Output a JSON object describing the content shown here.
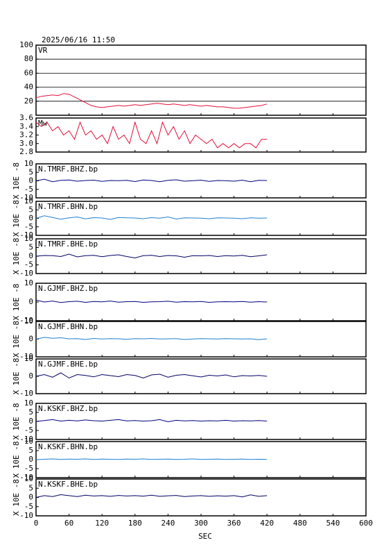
{
  "chart_data": [
    {
      "type": "line",
      "title": "2025/06/16 11:50",
      "label": "VR",
      "xlim": [
        0,
        600
      ],
      "xticks": [
        0,
        60,
        120,
        180,
        240,
        300,
        360,
        420,
        480,
        540,
        600
      ],
      "ylim": [
        0,
        100
      ],
      "yticks": [
        20,
        40,
        60,
        80,
        100
      ],
      "grid": true,
      "x": [
        0,
        10,
        20,
        30,
        40,
        50,
        60,
        70,
        80,
        90,
        100,
        110,
        120,
        130,
        140,
        150,
        160,
        170,
        180,
        190,
        200,
        210,
        220,
        230,
        240,
        250,
        260,
        270,
        280,
        290,
        300,
        310,
        320,
        330,
        340,
        350,
        360,
        370,
        380,
        390,
        400,
        410,
        420
      ],
      "series": [
        {
          "color": "#e0103a",
          "values": [
            25,
            27,
            28,
            29,
            28,
            31,
            30,
            26,
            22,
            18,
            14,
            12,
            11,
            12,
            13,
            14,
            13,
            14,
            15,
            14,
            15,
            16,
            17,
            16,
            15,
            16,
            15,
            14,
            15,
            14,
            13,
            14,
            13,
            12,
            12,
            11,
            10,
            10,
            11,
            12,
            13,
            14,
            16
          ]
        }
      ]
    },
    {
      "type": "line",
      "label": "Mw",
      "xlim": [
        0,
        600
      ],
      "xticks": [
        0,
        60,
        120,
        180,
        240,
        300,
        360,
        420,
        480,
        540,
        600
      ],
      "ylim": [
        2.8,
        3.6
      ],
      "yticks": [
        2.8,
        {
          "value": 3,
          "label": "3.0"
        },
        3.2,
        3.4,
        3.6
      ],
      "grid": false,
      "x": [
        0,
        10,
        20,
        30,
        40,
        50,
        60,
        70,
        80,
        90,
        100,
        110,
        120,
        130,
        140,
        150,
        160,
        170,
        180,
        190,
        200,
        210,
        220,
        230,
        240,
        250,
        260,
        270,
        280,
        290,
        300,
        310,
        320,
        330,
        340,
        350,
        360,
        370,
        380,
        390,
        400,
        410,
        420
      ],
      "series": [
        {
          "color": "#e0103a",
          "values": [
            3.5,
            3.4,
            3.5,
            3.3,
            3.4,
            3.2,
            3.3,
            3.1,
            3.5,
            3.2,
            3.3,
            3.1,
            3.2,
            3.0,
            3.4,
            3.1,
            3.2,
            3.0,
            3.5,
            3.1,
            3.0,
            3.3,
            3.0,
            3.5,
            3.2,
            3.4,
            3.1,
            3.3,
            3.0,
            3.2,
            3.1,
            3.0,
            3.1,
            2.9,
            3.0,
            2.9,
            3.0,
            2.9,
            3.0,
            3.0,
            2.9,
            3.1,
            3.1
          ]
        }
      ]
    },
    {
      "type": "line",
      "label": "N.TMRF.BHZ.bp",
      "ylabel": "X 10E -8",
      "xlim": [
        0,
        600
      ],
      "xticks": [
        0,
        60,
        120,
        180,
        240,
        300,
        360,
        420,
        480,
        540,
        600
      ],
      "ylim": [
        -10,
        10
      ],
      "yticks": [
        -10,
        -5,
        0,
        5,
        10
      ],
      "grid": false,
      "x": [
        0,
        15,
        30,
        45,
        60,
        75,
        90,
        105,
        120,
        135,
        150,
        165,
        180,
        195,
        210,
        225,
        240,
        255,
        270,
        285,
        300,
        315,
        330,
        345,
        360,
        375,
        390,
        405,
        420
      ],
      "series": [
        {
          "color": "#000080",
          "values": [
            0,
            1,
            -0.5,
            0.3,
            0.5,
            -0.2,
            0.2,
            0.4,
            -0.3,
            0.2,
            0.1,
            0.3,
            -0.4,
            0.5,
            0.2,
            -0.5,
            0.3,
            0.6,
            -0.2,
            0.1,
            0.4,
            -0.3,
            0.2,
            0.1,
            -0.2,
            0.4,
            -0.5,
            0.3,
            0.2
          ]
        }
      ]
    },
    {
      "type": "line",
      "label": "N.TMRF.BHN.bp",
      "ylabel": "X 10E -8",
      "xlim": [
        0,
        600
      ],
      "xticks": [
        0,
        60,
        120,
        180,
        240,
        300,
        360,
        420,
        480,
        540,
        600
      ],
      "ylim": [
        -10,
        10
      ],
      "yticks": [
        -10,
        -5,
        0,
        5,
        10
      ],
      "grid": false,
      "x": [
        0,
        15,
        30,
        45,
        60,
        75,
        90,
        105,
        120,
        135,
        150,
        165,
        180,
        195,
        210,
        225,
        240,
        255,
        270,
        285,
        300,
        315,
        330,
        345,
        360,
        375,
        390,
        405,
        420
      ],
      "series": [
        {
          "color": "#1e7fd0",
          "values": [
            0,
            1.5,
            0.5,
            -0.5,
            0.3,
            0.8,
            -0.3,
            0.4,
            0.2,
            -0.6,
            0.5,
            0.3,
            0.2,
            -0.2,
            0.4,
            0.1,
            0.8,
            -0.4,
            0.3,
            0.2,
            0.1,
            -0.2,
            0.3,
            0.2,
            0.1,
            -0.2,
            0.3,
            0.1,
            0.2
          ]
        }
      ]
    },
    {
      "type": "line",
      "label": "N.TMRF.BHE.bp",
      "ylabel": "X 10E -8",
      "xlim": [
        0,
        600
      ],
      "xticks": [
        0,
        60,
        120,
        180,
        240,
        300,
        360,
        420,
        480,
        540,
        600
      ],
      "ylim": [
        -10,
        10
      ],
      "yticks": [
        -10,
        -5,
        0,
        5,
        10
      ],
      "grid": false,
      "x": [
        0,
        15,
        30,
        45,
        60,
        75,
        90,
        105,
        120,
        135,
        150,
        165,
        180,
        195,
        210,
        225,
        240,
        255,
        270,
        285,
        300,
        315,
        330,
        345,
        360,
        375,
        390,
        405,
        420
      ],
      "series": [
        {
          "color": "#000066",
          "values": [
            0,
            0.4,
            0.3,
            -0.2,
            1.2,
            -0.4,
            0.3,
            0.5,
            -0.3,
            0.4,
            0.8,
            -0.2,
            -1,
            0.3,
            0.5,
            -0.2,
            0.4,
            0.2,
            -0.6,
            0.3,
            0.2,
            0.4,
            -0.2,
            0.3,
            0.1,
            0.5,
            -0.3,
            0.2,
            0.8
          ]
        }
      ]
    },
    {
      "type": "line",
      "label": "N.GJMF.BHZ.bp",
      "ylabel": "X 10E -8",
      "xlim": [
        0,
        600
      ],
      "xticks": [
        0,
        60,
        120,
        180,
        240,
        300,
        360,
        420,
        480,
        540,
        600
      ],
      "ylim": [
        -10,
        10
      ],
      "yticks": [
        -10,
        0,
        10
      ],
      "grid": false,
      "x": [
        0,
        15,
        30,
        45,
        60,
        75,
        90,
        105,
        120,
        135,
        150,
        165,
        180,
        195,
        210,
        225,
        240,
        255,
        270,
        285,
        300,
        315,
        330,
        345,
        360,
        375,
        390,
        405,
        420
      ],
      "series": [
        {
          "color": "#000080",
          "values": [
            1,
            0,
            0.5,
            -0.3,
            0.2,
            0.4,
            -0.2,
            0.3,
            0.1,
            0.5,
            -0.1,
            0.2,
            0.3,
            -0.2,
            0.1,
            0.2,
            0.4,
            -0.1,
            0.2,
            0.1,
            0.3,
            -0.2,
            0.1,
            0.2,
            0.1,
            0.3,
            -0.1,
            0.2,
            0
          ]
        }
      ]
    },
    {
      "type": "line",
      "label": "N.GJMF.BHN.bp",
      "ylabel": "X 10E -8",
      "xlim": [
        0,
        600
      ],
      "xticks": [
        0,
        60,
        120,
        180,
        240,
        300,
        360,
        420,
        480,
        540,
        600
      ],
      "ylim": [
        -10,
        10
      ],
      "yticks": [
        -10,
        0,
        10
      ],
      "grid": false,
      "x": [
        0,
        15,
        30,
        45,
        60,
        75,
        90,
        105,
        120,
        135,
        150,
        165,
        180,
        195,
        210,
        225,
        240,
        255,
        270,
        285,
        300,
        315,
        330,
        345,
        360,
        375,
        390,
        405,
        420
      ],
      "series": [
        {
          "color": "#1e7fd0",
          "values": [
            0,
            1,
            0.5,
            0.8,
            0.2,
            0.3,
            -0.2,
            0.4,
            0.1,
            0.3,
            0.2,
            -0.1,
            0.3,
            0.2,
            0.4,
            0.1,
            0.2,
            0.3,
            -0.2,
            0.1,
            0.3,
            0.2,
            0.1,
            0.3,
            0.2,
            0.1,
            0.2,
            -0.3,
            0.2
          ]
        }
      ]
    },
    {
      "type": "line",
      "label": "N.GJMF.BHE.bp",
      "ylabel": "X 10E -8",
      "xlim": [
        0,
        600
      ],
      "xticks": [
        0,
        60,
        120,
        180,
        240,
        300,
        360,
        420,
        480,
        540,
        600
      ],
      "ylim": [
        -10,
        10
      ],
      "yticks": [
        -10,
        0,
        10
      ],
      "grid": false,
      "x": [
        0,
        15,
        30,
        45,
        60,
        75,
        90,
        105,
        120,
        135,
        150,
        165,
        180,
        195,
        210,
        225,
        240,
        255,
        270,
        285,
        300,
        315,
        330,
        345,
        360,
        375,
        390,
        405,
        420
      ],
      "series": [
        {
          "color": "#000066",
          "values": [
            0,
            1,
            -0.5,
            2,
            -1,
            1,
            0.5,
            -0.3,
            1,
            0.4,
            -0.2,
            1,
            0.5,
            -1,
            0.8,
            1.2,
            -0.5,
            0.6,
            1,
            0.3,
            -0.4,
            0.6,
            0.2,
            0.8,
            -0.3,
            0.4,
            0.2,
            0.5,
            0
          ]
        }
      ]
    },
    {
      "type": "line",
      "label": "N.KSKF.BHZ.bp",
      "ylabel": "X 10E -8",
      "xlim": [
        0,
        600
      ],
      "xticks": [
        0,
        60,
        120,
        180,
        240,
        300,
        360,
        420,
        480,
        540,
        600
      ],
      "ylim": [
        -10,
        10
      ],
      "yticks": [
        -10,
        -5,
        0,
        5,
        10
      ],
      "grid": false,
      "x": [
        0,
        15,
        30,
        45,
        60,
        75,
        90,
        105,
        120,
        135,
        150,
        165,
        180,
        195,
        210,
        225,
        240,
        255,
        270,
        285,
        300,
        315,
        330,
        345,
        360,
        375,
        390,
        405,
        420
      ],
      "series": [
        {
          "color": "#000080",
          "values": [
            0,
            0.5,
            1,
            0.2,
            0.6,
            0.3,
            0.8,
            0.4,
            0.2,
            0.6,
            1,
            0.3,
            0.5,
            0.2,
            0.4,
            1,
            -0.2,
            0.6,
            0.3,
            0.5,
            0.2,
            0.4,
            0.3,
            0.6,
            0.2,
            0.4,
            0.3,
            0.5,
            0.2
          ]
        }
      ]
    },
    {
      "type": "line",
      "label": "N.KSKF.BHN.bp",
      "ylabel": "X 10E -8",
      "xlim": [
        0,
        600
      ],
      "xticks": [
        0,
        60,
        120,
        180,
        240,
        300,
        360,
        420,
        480,
        540,
        600
      ],
      "ylim": [
        -10,
        10
      ],
      "yticks": [
        -10,
        -5,
        0,
        5,
        10
      ],
      "grid": false,
      "x": [
        0,
        15,
        30,
        45,
        60,
        75,
        90,
        105,
        120,
        135,
        150,
        165,
        180,
        195,
        210,
        225,
        240,
        255,
        270,
        285,
        300,
        315,
        330,
        345,
        360,
        375,
        390,
        405,
        420
      ],
      "series": [
        {
          "color": "#1e7fd0",
          "values": [
            0,
            0.2,
            0.4,
            0.1,
            0.3,
            0.2,
            0.4,
            0.1,
            0.3,
            0.2,
            0.1,
            0.3,
            0.2,
            0.4,
            0.1,
            0.2,
            0.3,
            0.1,
            0.2,
            0.4,
            0.1,
            0.2,
            0.3,
            0.1,
            0.2,
            0.3,
            0.1,
            0.2,
            0.1
          ]
        }
      ]
    },
    {
      "type": "line",
      "label": "N.KSKF.BHE.bp",
      "ylabel": "X 10E -8",
      "xlabel": "SEC",
      "xlim": [
        0,
        600
      ],
      "xticks": [
        0,
        60,
        120,
        180,
        240,
        300,
        360,
        420,
        480,
        540,
        600
      ],
      "ylim": [
        -10,
        10
      ],
      "yticks": [
        -10,
        -5,
        0,
        5,
        10
      ],
      "grid": false,
      "x": [
        0,
        15,
        30,
        45,
        60,
        75,
        90,
        105,
        120,
        135,
        150,
        165,
        180,
        195,
        210,
        225,
        240,
        255,
        270,
        285,
        300,
        315,
        330,
        345,
        360,
        375,
        390,
        405,
        420
      ],
      "series": [
        {
          "color": "#000066",
          "values": [
            0,
            1,
            0.5,
            1.5,
            1,
            0.5,
            1.2,
            0.8,
            1,
            0.6,
            1.1,
            0.8,
            1,
            0.7,
            1.2,
            0.6,
            0.9,
            1.1,
            0.5,
            0.8,
            1,
            0.6,
            0.9,
            0.7,
            1,
            0.3,
            1.4,
            0.6,
            1
          ]
        }
      ]
    }
  ]
}
